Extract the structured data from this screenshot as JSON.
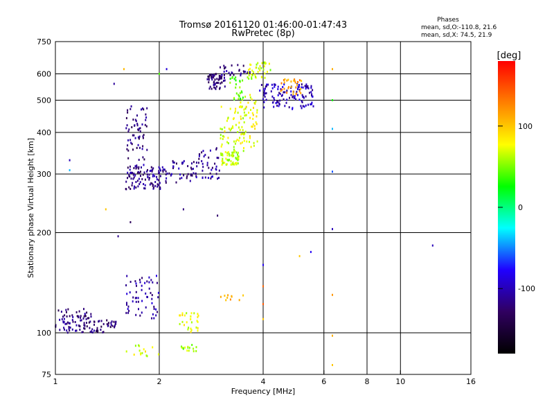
{
  "chart_data": {
    "type": "scatter",
    "title": "Tromsø 20161120 01:46:00-01:47:43",
    "subtitle": "RwPretec (8p)",
    "xlabel": "Frequency [MHz]",
    "ylabel": "Stationary phase Virtual Height [km]",
    "x_scale": "log2",
    "y_scale": "log",
    "xlim": [
      1,
      16
    ],
    "ylim": [
      75,
      750
    ],
    "x_ticks": [
      1,
      2,
      4,
      6,
      8,
      10,
      16
    ],
    "x_tick_labels": [
      "1",
      "2",
      "4",
      "6",
      "8",
      "10",
      "16"
    ],
    "x_grid": [
      2,
      4,
      6,
      8,
      10
    ],
    "y_ticks": [
      75,
      100,
      200,
      300,
      400,
      500,
      600,
      750
    ],
    "y_tick_labels": [
      "75",
      "100",
      "200",
      "300",
      "400",
      "500",
      "600",
      "750"
    ],
    "y_grid": [
      100,
      200,
      300,
      400,
      500,
      600
    ],
    "grid": true,
    "colorbar": {
      "label": "[deg]",
      "range": [
        -180,
        180
      ],
      "ticks": [
        100,
        0,
        -100
      ],
      "tick_labels": [
        "100",
        "0",
        "-100"
      ],
      "stops": [
        "#000000",
        "#300060",
        "#2000ff",
        "#00ffff",
        "#00ff00",
        "#ffff00",
        "#ff8000",
        "#ff0000"
      ]
    },
    "legend": {
      "title": "Phases",
      "lines": [
        "mean, sd,O:-110.8, 21.6",
        "mean, sd,X:  74.5, 21.9"
      ]
    },
    "series": [
      {
        "clusters": [
          {
            "f": [
              1.0,
              1.27
            ],
            "h": [
              100,
              118
            ],
            "phase": -120,
            "n": 80
          },
          {
            "f": [
              1.27,
              1.5
            ],
            "h": [
              100,
              110
            ],
            "phase": -125,
            "n": 40
          },
          {
            "f": [
              1.6,
              2.0
            ],
            "h": [
              110,
              150
            ],
            "phase": -105,
            "n": 60
          },
          {
            "f": [
              1.6,
              2.05
            ],
            "h": [
              270,
              320
            ],
            "phase": -115,
            "n": 100
          },
          {
            "f": [
              1.6,
              1.85
            ],
            "h": [
              330,
              480
            ],
            "phase": -120,
            "n": 60
          },
          {
            "f": [
              2.05,
              2.6
            ],
            "h": [
              280,
              330
            ],
            "phase": -112,
            "n": 50
          },
          {
            "f": [
              2.6,
              3.0
            ],
            "h": [
              290,
              360
            ],
            "phase": -110,
            "n": 40
          },
          {
            "f": [
              2.75,
              3.1
            ],
            "h": [
              540,
              600
            ],
            "phase": -125,
            "n": 60
          },
          {
            "f": [
              3.0,
              3.7
            ],
            "h": [
              590,
              640
            ],
            "phase": -115,
            "n": 30
          },
          {
            "f": [
              3.0,
              3.4
            ],
            "h": [
              320,
              350
            ],
            "phase": 65,
            "n": 60
          },
          {
            "f": [
              3.0,
              3.6
            ],
            "h": [
              350,
              480
            ],
            "phase": 70,
            "n": 60
          },
          {
            "f": [
              3.4,
              3.9
            ],
            "h": [
              360,
              520
            ],
            "phase": 80,
            "n": 50
          },
          {
            "f": [
              3.6,
              4.2
            ],
            "h": [
              580,
              650
            ],
            "phase": 65,
            "n": 40
          },
          {
            "f": [
              3.2,
              3.5
            ],
            "h": [
              500,
              590
            ],
            "phase": 45,
            "n": 25
          },
          {
            "f": [
              3.9,
              5.6
            ],
            "h": [
              470,
              560
            ],
            "phase": -100,
            "n": 120
          },
          {
            "f": [
              4.5,
              5.2
            ],
            "h": [
              520,
              580
            ],
            "phase": 115,
            "n": 30
          },
          {
            "f": [
              2.25,
              2.6
            ],
            "h": [
              100,
              115
            ],
            "phase": 75,
            "n": 30
          },
          {
            "f": [
              1.6,
              2.0
            ],
            "h": [
              85,
              92
            ],
            "phase": 75,
            "n": 15
          },
          {
            "f": [
              2.3,
              2.6
            ],
            "h": [
              88,
              92
            ],
            "phase": 55,
            "n": 15
          },
          {
            "f": [
              2.9,
              3.6
            ],
            "h": [
              125,
              130
            ],
            "phase": 105,
            "n": 10
          }
        ],
        "scattered": [
          {
            "f": 1.48,
            "h": 560,
            "phase": -110
          },
          {
            "f": 1.58,
            "h": 620,
            "phase": 105
          },
          {
            "f": 1.1,
            "h": 330,
            "phase": -100
          },
          {
            "f": 1.1,
            "h": 308,
            "phase": -40
          },
          {
            "f": 1.52,
            "h": 195,
            "phase": -115
          },
          {
            "f": 1.65,
            "h": 215,
            "phase": -130
          },
          {
            "f": 1.4,
            "h": 235,
            "phase": 100
          },
          {
            "f": 2.35,
            "h": 235,
            "phase": -120
          },
          {
            "f": 2.95,
            "h": 225,
            "phase": -125
          },
          {
            "f": 4.0,
            "h": 160,
            "phase": -80
          },
          {
            "f": 4.0,
            "h": 138,
            "phase": 140
          },
          {
            "f": 4.0,
            "h": 122,
            "phase": 145
          },
          {
            "f": 4.0,
            "h": 110,
            "phase": 100
          },
          {
            "f": 5.1,
            "h": 170,
            "phase": 100
          },
          {
            "f": 5.5,
            "h": 175,
            "phase": -80
          },
          {
            "f": 6.35,
            "h": 205,
            "phase": -100
          },
          {
            "f": 6.35,
            "h": 305,
            "phase": -60
          },
          {
            "f": 6.35,
            "h": 410,
            "phase": -40
          },
          {
            "f": 6.35,
            "h": 500,
            "phase": 30
          },
          {
            "f": 6.35,
            "h": 620,
            "phase": 110
          },
          {
            "f": 6.35,
            "h": 130,
            "phase": 120
          },
          {
            "f": 6.35,
            "h": 98,
            "phase": 110
          },
          {
            "f": 6.35,
            "h": 80,
            "phase": 100
          },
          {
            "f": 12.4,
            "h": 183,
            "phase": -100
          },
          {
            "f": 2.0,
            "h": 600,
            "phase": 40
          },
          {
            "f": 2.1,
            "h": 620,
            "phase": -90
          }
        ]
      }
    ]
  }
}
